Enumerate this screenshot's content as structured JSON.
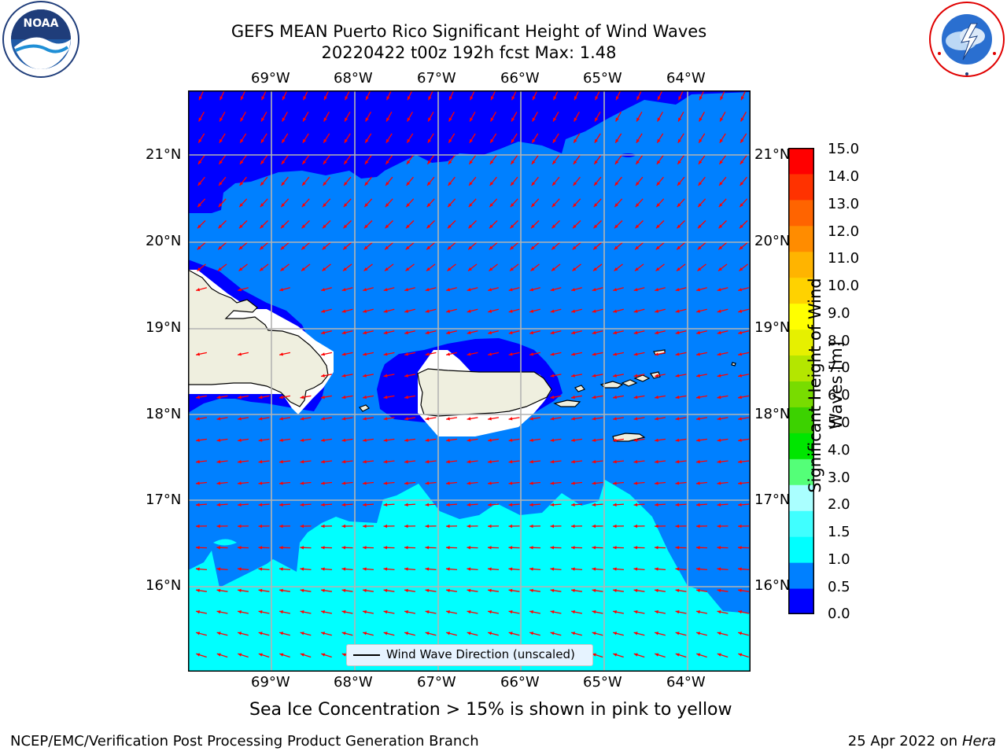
{
  "header": {
    "title_line1": "GEFS MEAN Puerto Rico Significant Height of Wind Waves",
    "title_line2": "20220422 t00z 192h fcst   Max: 1.48"
  },
  "logos": {
    "noaa": {
      "text": "NOAA",
      "ring_text": "NATIONAL OCEANIC AND ATMOSPHERIC ADMINISTRATION · U.S. DEPARTMENT OF COMMERCE"
    },
    "nws": {
      "ring_text": "NATIONAL WEATHER SERVICE"
    }
  },
  "map": {
    "lon_labels": [
      "69°W",
      "68°W",
      "67°W",
      "66°W",
      "65°W",
      "64°W"
    ],
    "lat_labels": [
      "21°N",
      "20°N",
      "19°N",
      "18°N",
      "17°N",
      "16°N"
    ],
    "legend_label": "Wind Wave Direction (unscaled)",
    "arrow_color": "#ff0000",
    "land_color": "#efefdf"
  },
  "colorbar": {
    "label_line1": "Significant Height of Wind",
    "label_line2": "Waves [m]",
    "ticks": [
      "15.0",
      "14.0",
      "13.0",
      "12.0",
      "11.0",
      "10.0",
      "9.0",
      "8.0",
      "7.0",
      "6.0",
      "5.0",
      "4.0",
      "3.0",
      "2.0",
      "1.5",
      "1.0",
      "0.5",
      "0.0"
    ],
    "colors_bottom_to_top": [
      "#0000ff",
      "#0080ff",
      "#00ffff",
      "#40ffff",
      "#aaffff",
      "#54ff78",
      "#00e600",
      "#3cd200",
      "#78dc00",
      "#b4e600",
      "#e6f000",
      "#ffff00",
      "#ffd200",
      "#ffb400",
      "#ff8c00",
      "#ff6400",
      "#ff3200",
      "#ff0000"
    ]
  },
  "caption": "Sea Ice Concentration > 15% is shown in pink to yellow",
  "footer": {
    "left": "NCEP/EMC/Verification Post Processing Product Generation Branch",
    "right_date": "25 Apr 2022 on",
    "right_host": "Hera"
  }
}
